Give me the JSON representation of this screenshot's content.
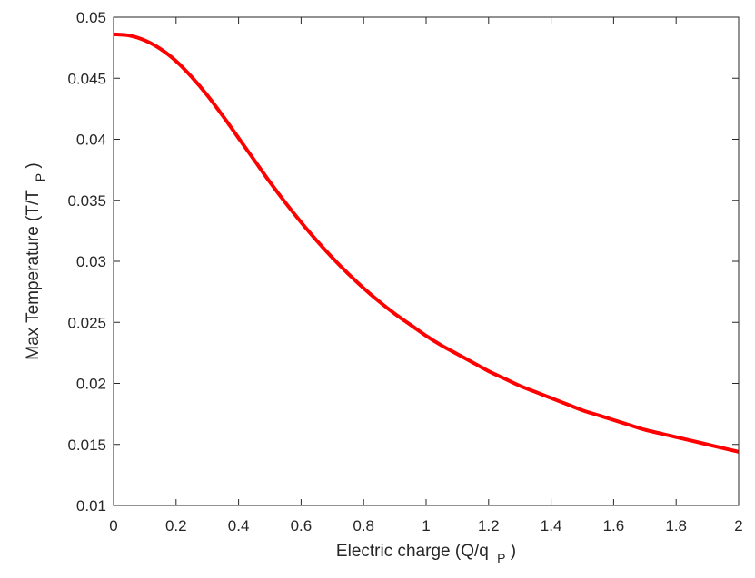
{
  "chart_data": {
    "type": "line",
    "title": "",
    "xlabel": {
      "main": "Electric charge (Q/q",
      "sub": "P",
      "close": ")"
    },
    "ylabel": {
      "main": "Max Temperature (T/T",
      "sub": "P",
      "close": ")"
    },
    "xlim": [
      0,
      2
    ],
    "ylim": [
      0.01,
      0.05
    ],
    "x_ticks": [
      0,
      0.2,
      0.4,
      0.6,
      0.8,
      1,
      1.2,
      1.4,
      1.6,
      1.8,
      2
    ],
    "x_tick_labels": [
      "0",
      "0.2",
      "0.4",
      "0.6",
      "0.8",
      "1",
      "1.2",
      "1.4",
      "1.6",
      "1.8",
      "2"
    ],
    "y_ticks": [
      0.01,
      0.015,
      0.02,
      0.025,
      0.03,
      0.035,
      0.04,
      0.045,
      0.05
    ],
    "y_tick_labels": [
      "0.01",
      "0.015",
      "0.02",
      "0.025",
      "0.03",
      "0.035",
      "0.04",
      "0.045",
      "0.05"
    ],
    "grid": false,
    "legend": "none",
    "series": [
      {
        "color": "#ff0000",
        "x": [
          0,
          0.05,
          0.1,
          0.15,
          0.2,
          0.25,
          0.3,
          0.35,
          0.4,
          0.45,
          0.5,
          0.55,
          0.6,
          0.65,
          0.7,
          0.75,
          0.8,
          0.85,
          0.9,
          0.95,
          1.0,
          1.05,
          1.1,
          1.15,
          1.2,
          1.25,
          1.3,
          1.35,
          1.4,
          1.45,
          1.5,
          1.55,
          1.6,
          1.65,
          1.7,
          1.75,
          1.8,
          1.85,
          1.9,
          1.95,
          2.0
        ],
        "y": [
          0.0486,
          0.0485,
          0.0481,
          0.0474,
          0.0464,
          0.0451,
          0.0436,
          0.0419,
          0.0401,
          0.0383,
          0.0365,
          0.0348,
          0.0332,
          0.0317,
          0.0303,
          0.029,
          0.0278,
          0.0267,
          0.0257,
          0.0248,
          0.0239,
          0.0231,
          0.0224,
          0.0217,
          0.021,
          0.0204,
          0.0198,
          0.0193,
          0.0188,
          0.0183,
          0.0178,
          0.0174,
          0.017,
          0.0166,
          0.0162,
          0.0159,
          0.0156,
          0.0153,
          0.015,
          0.0147,
          0.0144
        ]
      }
    ]
  }
}
